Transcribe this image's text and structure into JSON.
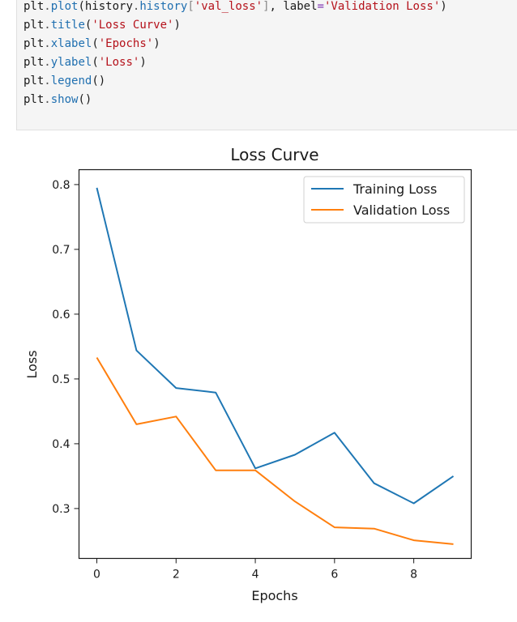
{
  "code": {
    "lines": [
      [
        [
          "plt",
          "default"
        ],
        [
          ".",
          "punc"
        ],
        [
          "plot",
          "attr"
        ],
        [
          "(history",
          "default"
        ],
        [
          ".",
          "punc"
        ],
        [
          "history",
          "attr"
        ],
        [
          "[",
          "bracket"
        ],
        [
          "'val_loss'",
          "str"
        ],
        [
          "]",
          "bracket"
        ],
        [
          ", label",
          "default"
        ],
        [
          "=",
          "kw"
        ],
        [
          "'Validation Loss'",
          "str"
        ],
        [
          ")",
          "default"
        ]
      ],
      [
        [
          "plt",
          "default"
        ],
        [
          ".",
          "punc"
        ],
        [
          "title",
          "attr"
        ],
        [
          "(",
          "default"
        ],
        [
          "'Loss Curve'",
          "str"
        ],
        [
          ")",
          "default"
        ]
      ],
      [
        [
          "plt",
          "default"
        ],
        [
          ".",
          "punc"
        ],
        [
          "xlabel",
          "attr"
        ],
        [
          "(",
          "default"
        ],
        [
          "'Epochs'",
          "str"
        ],
        [
          ")",
          "default"
        ]
      ],
      [
        [
          "plt",
          "default"
        ],
        [
          ".",
          "punc"
        ],
        [
          "ylabel",
          "attr"
        ],
        [
          "(",
          "default"
        ],
        [
          "'Loss'",
          "str"
        ],
        [
          ")",
          "default"
        ]
      ],
      [
        [
          "plt",
          "default"
        ],
        [
          ".",
          "punc"
        ],
        [
          "legend",
          "attr"
        ],
        [
          "()",
          "default"
        ]
      ],
      [
        [
          "plt",
          "default"
        ],
        [
          ".",
          "punc"
        ],
        [
          "show",
          "attr"
        ],
        [
          "()",
          "default"
        ]
      ]
    ]
  },
  "chart_data": {
    "type": "line",
    "title": "Loss Curve",
    "xlabel": "Epochs",
    "ylabel": "Loss",
    "x": [
      0,
      1,
      2,
      3,
      4,
      5,
      6,
      7,
      8,
      9
    ],
    "xlim": [
      -0.45,
      9.45
    ],
    "ylim": [
      0.223,
      0.823
    ],
    "xticks": [
      0,
      2,
      4,
      6,
      8
    ],
    "yticks": [
      0.3,
      0.4,
      0.5,
      0.6,
      0.7,
      0.8
    ],
    "grid": false,
    "legend_position": "top-right",
    "series": [
      {
        "name": "Training Loss",
        "color": "#1f77b4",
        "values": [
          0.795,
          0.544,
          0.486,
          0.479,
          0.362,
          0.383,
          0.417,
          0.339,
          0.308,
          0.35
        ]
      },
      {
        "name": "Validation Loss",
        "color": "#ff7f0e",
        "values": [
          0.533,
          0.43,
          0.442,
          0.359,
          0.359,
          0.311,
          0.271,
          0.269,
          0.251,
          0.245
        ]
      }
    ]
  }
}
